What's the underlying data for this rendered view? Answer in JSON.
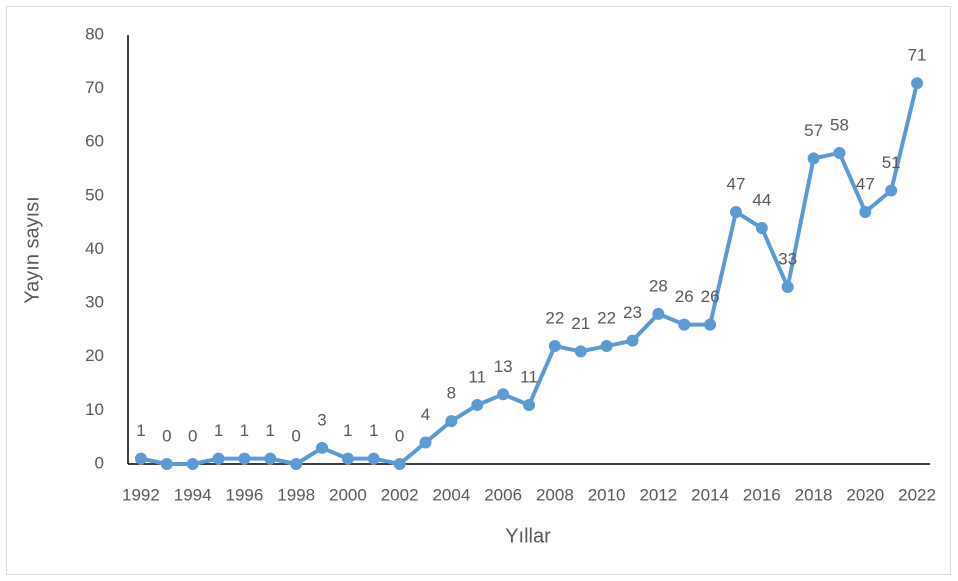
{
  "chart_data": {
    "type": "line",
    "x_label": "Yıllar",
    "y_label": "Yayın sayısı",
    "categories": [
      "1992",
      null,
      "1994",
      null,
      "1996",
      null,
      "1998",
      null,
      "2000",
      null,
      "2002",
      null,
      "2004",
      null,
      "2006",
      null,
      "2008",
      null,
      "2010",
      null,
      "2012",
      null,
      "2014",
      null,
      "2016",
      null,
      "2018",
      null,
      "2020",
      null,
      "2022"
    ],
    "series": [
      {
        "name": "Yayın sayısı",
        "color": "#5b9bd5",
        "values": [
          1,
          0,
          0,
          1,
          1,
          1,
          0,
          3,
          1,
          1,
          0,
          4,
          8,
          11,
          13,
          11,
          22,
          21,
          22,
          23,
          28,
          26,
          26,
          47,
          44,
          33,
          57,
          58,
          47,
          51,
          71
        ]
      }
    ],
    "ylim": [
      0,
      80
    ],
    "yticks": [
      0,
      10,
      20,
      30,
      40,
      50,
      60,
      70,
      80
    ],
    "grid": false
  }
}
